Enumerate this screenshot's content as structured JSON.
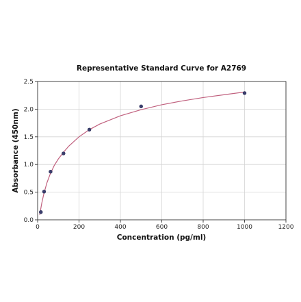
{
  "chart_data": {
    "type": "scatter",
    "title": "Representative Standard Curve for A2769",
    "xlabel": "Concentration (pg/ml)",
    "ylabel": "Absorbance (450nm)",
    "xlim": [
      0,
      1200
    ],
    "ylim": [
      0,
      2.5
    ],
    "xticks": [
      0,
      200,
      400,
      600,
      800,
      1000,
      1200
    ],
    "yticks": [
      0.0,
      0.5,
      1.0,
      1.5,
      2.0,
      2.5
    ],
    "xtick_labels": [
      "0",
      "200",
      "400",
      "600",
      "800",
      "1000",
      "1200"
    ],
    "ytick_labels": [
      "0.0",
      "0.5",
      "1.0",
      "1.5",
      "2.0",
      "2.5"
    ],
    "grid": true,
    "series": [
      {
        "x": [
          15.6,
          31.25,
          62.5,
          125,
          250,
          500,
          1000
        ],
        "y": [
          0.14,
          0.51,
          0.87,
          1.2,
          1.63,
          2.05,
          2.29
        ]
      }
    ],
    "fit_curve": {
      "x": [
        10,
        20,
        30,
        45,
        60,
        80,
        100,
        125,
        150,
        200,
        250,
        300,
        400,
        500,
        600,
        700,
        800,
        900,
        1000
      ],
      "y": [
        0.09,
        0.3,
        0.47,
        0.67,
        0.82,
        0.98,
        1.1,
        1.22,
        1.33,
        1.5,
        1.63,
        1.73,
        1.88,
        1.99,
        2.08,
        2.15,
        2.21,
        2.26,
        2.31
      ]
    },
    "colors": {
      "curve": "#c0607e",
      "points": "#3b3f6e",
      "grid": "#d4d4d4"
    }
  }
}
